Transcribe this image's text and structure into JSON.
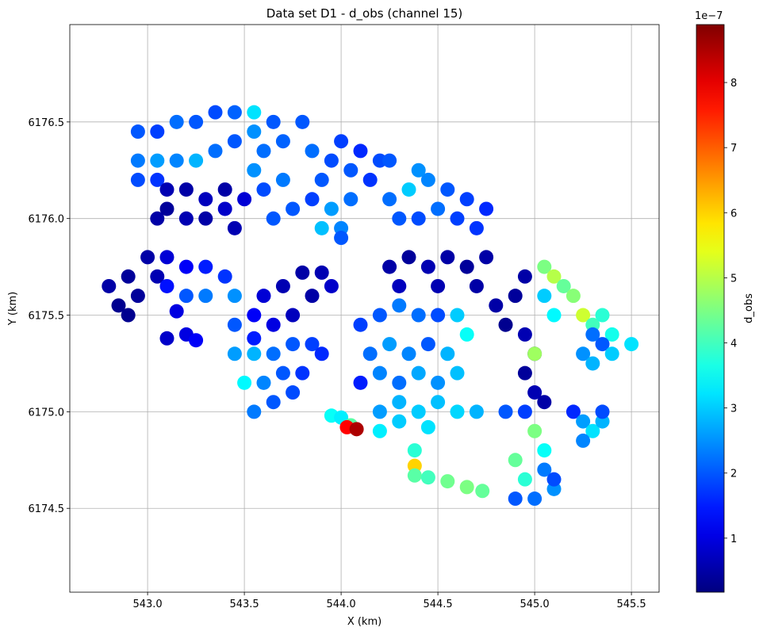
{
  "chart_data": {
    "type": "scatter",
    "title": "Data set D1 - d_obs (channel 15)",
    "x_label": "X (km)",
    "y_label": "Y (km)",
    "colorbar_label": "d_obs",
    "colorbar_offset": "1e−7",
    "colormap": "jet",
    "grid": true,
    "xlim": [
      542.598,
      545.643
    ],
    "ylim": [
      6174.066,
      6177.004
    ],
    "clim": [
      0.17,
      8.89
    ],
    "xticks": [
      {
        "value": 543,
        "label": "543.0"
      },
      543.5,
      {
        "value": 544,
        "label": "544.0"
      },
      544.5,
      {
        "value": 545,
        "label": "545.0"
      },
      545.5
    ],
    "yticks": [
      6174.5,
      {
        "value": 6175,
        "label": "6175.0"
      },
      6175.5,
      {
        "value": 6176,
        "label": "6176.0"
      },
      6176.5
    ],
    "cticks": [
      1,
      2,
      3,
      4,
      5,
      6,
      7,
      8
    ],
    "points": [
      [
        542.95,
        6176.45,
        2.0
      ],
      [
        543.05,
        6176.45,
        1.8
      ],
      [
        543.15,
        6176.5,
        2.2
      ],
      [
        543.25,
        6176.5,
        2.0
      ],
      [
        543.35,
        6176.55,
        1.9
      ],
      [
        543.45,
        6176.55,
        2.1
      ],
      [
        542.95,
        6176.3,
        2.3
      ],
      [
        543.05,
        6176.3,
        2.6
      ],
      [
        543.15,
        6176.3,
        2.4
      ],
      [
        543.25,
        6176.3,
        2.8
      ],
      [
        543.35,
        6176.35,
        2.2
      ],
      [
        543.45,
        6176.4,
        2.0
      ],
      [
        542.95,
        6176.2,
        1.9
      ],
      [
        543.05,
        6176.2,
        1.7
      ],
      [
        543.55,
        6176.45,
        2.5
      ],
      [
        543.55,
        6176.55,
        3.2
      ],
      [
        543.1,
        6176.15,
        0.6
      ],
      [
        543.2,
        6176.15,
        0.5
      ],
      [
        543.3,
        6176.1,
        0.7
      ],
      [
        543.4,
        6176.15,
        0.5
      ],
      [
        543.1,
        6176.05,
        0.4
      ],
      [
        543.2,
        6176.0,
        0.6
      ],
      [
        543.3,
        6176.0,
        0.5
      ],
      [
        543.4,
        6176.05,
        0.8
      ],
      [
        543.05,
        6176.0,
        0.5
      ],
      [
        543.45,
        6175.95,
        0.6
      ],
      [
        543.5,
        6176.1,
        0.9
      ],
      [
        543.55,
        6176.25,
        2.5
      ],
      [
        543.6,
        6176.35,
        2.2
      ],
      [
        543.65,
        6176.5,
        2.0
      ],
      [
        543.6,
        6176.15,
        1.9
      ],
      [
        543.65,
        6176.0,
        2.0
      ],
      [
        543.7,
        6176.2,
        2.3
      ],
      [
        543.7,
        6176.4,
        2.1
      ],
      [
        543.75,
        6176.05,
        2.0
      ],
      [
        543.8,
        6176.5,
        2.0
      ],
      [
        543.85,
        6176.35,
        2.2
      ],
      [
        543.9,
        6176.2,
        2.0
      ],
      [
        543.95,
        6176.05,
        2.6
      ],
      [
        544.0,
        6175.95,
        2.4
      ],
      [
        543.85,
        6176.1,
        1.8
      ],
      [
        543.9,
        6175.95,
        2.9
      ],
      [
        544.05,
        6176.1,
        2.2
      ],
      [
        543.95,
        6176.3,
        1.9
      ],
      [
        544.0,
        6175.9,
        2.0
      ],
      [
        544.0,
        6176.4,
        1.8
      ],
      [
        544.1,
        6176.35,
        1.6
      ],
      [
        544.2,
        6176.3,
        1.9
      ],
      [
        544.05,
        6176.25,
        2.0
      ],
      [
        544.15,
        6176.2,
        1.7
      ],
      [
        544.25,
        6176.3,
        2.0
      ],
      [
        544.25,
        6176.1,
        2.2
      ],
      [
        544.35,
        6176.15,
        3.0
      ],
      [
        544.45,
        6176.2,
        2.4
      ],
      [
        544.55,
        6176.15,
        2.0
      ],
      [
        544.65,
        6176.1,
        1.8
      ],
      [
        544.75,
        6176.05,
        1.6
      ],
      [
        544.3,
        6176.0,
        2.0
      ],
      [
        544.4,
        6176.0,
        1.9
      ],
      [
        544.5,
        6176.05,
        2.2
      ],
      [
        544.6,
        6176.0,
        1.8
      ],
      [
        544.7,
        6175.95,
        1.7
      ],
      [
        544.4,
        6176.25,
        2.5
      ],
      [
        542.8,
        6175.65,
        0.5
      ],
      [
        542.9,
        6175.7,
        0.4
      ],
      [
        543.0,
        6175.8,
        0.5
      ],
      [
        542.85,
        6175.55,
        0.3
      ],
      [
        542.95,
        6175.6,
        0.4
      ],
      [
        543.05,
        6175.7,
        0.6
      ],
      [
        542.9,
        6175.5,
        0.3
      ],
      [
        543.1,
        6175.8,
        0.9
      ],
      [
        543.2,
        6175.75,
        1.2
      ],
      [
        543.3,
        6175.75,
        1.5
      ],
      [
        543.4,
        6175.7,
        1.7
      ],
      [
        543.1,
        6175.65,
        1.4
      ],
      [
        543.2,
        6175.6,
        2.0
      ],
      [
        543.3,
        6175.6,
        2.3
      ],
      [
        543.45,
        6175.6,
        2.5
      ],
      [
        543.15,
        6175.52,
        1.0
      ],
      [
        543.1,
        6175.38,
        0.8
      ],
      [
        543.2,
        6175.4,
        1.0
      ],
      [
        543.25,
        6175.37,
        1.2
      ],
      [
        543.45,
        6175.45,
        2.0
      ],
      [
        543.55,
        6175.5,
        1.2
      ],
      [
        543.6,
        6175.6,
        0.9
      ],
      [
        543.7,
        6175.65,
        0.6
      ],
      [
        543.8,
        6175.72,
        0.5
      ],
      [
        543.9,
        6175.72,
        0.6
      ],
      [
        543.65,
        6175.45,
        1.0
      ],
      [
        543.75,
        6175.5,
        0.7
      ],
      [
        543.85,
        6175.6,
        0.5
      ],
      [
        543.95,
        6175.65,
        0.8
      ],
      [
        543.55,
        6175.38,
        1.5
      ],
      [
        544.25,
        6175.75,
        0.5
      ],
      [
        544.35,
        6175.8,
        0.4
      ],
      [
        544.45,
        6175.75,
        0.6
      ],
      [
        544.55,
        6175.8,
        0.5
      ],
      [
        544.65,
        6175.75,
        0.4
      ],
      [
        544.75,
        6175.8,
        0.5
      ],
      [
        544.3,
        6175.65,
        0.7
      ],
      [
        544.5,
        6175.65,
        0.6
      ],
      [
        544.7,
        6175.65,
        0.5
      ],
      [
        544.1,
        6175.45,
        1.8
      ],
      [
        544.2,
        6175.5,
        2.0
      ],
      [
        544.3,
        6175.55,
        2.3
      ],
      [
        544.4,
        6175.5,
        2.2
      ],
      [
        544.5,
        6175.5,
        1.9
      ],
      [
        544.6,
        6175.5,
        3.0
      ],
      [
        544.15,
        6175.3,
        2.2
      ],
      [
        544.25,
        6175.35,
        2.6
      ],
      [
        544.35,
        6175.3,
        2.4
      ],
      [
        544.45,
        6175.35,
        2.0
      ],
      [
        544.55,
        6175.3,
        2.8
      ],
      [
        544.65,
        6175.4,
        3.5
      ],
      [
        544.1,
        6175.15,
        1.5
      ],
      [
        544.2,
        6175.2,
        2.4
      ],
      [
        544.3,
        6175.15,
        2.2
      ],
      [
        544.4,
        6175.2,
        2.7
      ],
      [
        544.5,
        6175.15,
        2.5
      ],
      [
        544.6,
        6175.2,
        2.9
      ],
      [
        543.45,
        6175.3,
        2.6
      ],
      [
        543.55,
        6175.3,
        2.8
      ],
      [
        543.65,
        6175.3,
        2.2
      ],
      [
        543.75,
        6175.35,
        2.0
      ],
      [
        543.85,
        6175.35,
        1.8
      ],
      [
        543.5,
        6175.15,
        3.4
      ],
      [
        543.6,
        6175.15,
        2.4
      ],
      [
        543.7,
        6175.2,
        2.0
      ],
      [
        543.8,
        6175.2,
        1.7
      ],
      [
        543.9,
        6175.3,
        1.6
      ],
      [
        543.55,
        6175.0,
        2.3
      ],
      [
        543.65,
        6175.05,
        2.0
      ],
      [
        543.75,
        6175.1,
        1.9
      ],
      [
        544.2,
        6175.0,
        2.6
      ],
      [
        544.3,
        6175.05,
        2.8
      ],
      [
        544.4,
        6175.0,
        3.0
      ],
      [
        544.5,
        6175.05,
        2.9
      ],
      [
        544.6,
        6175.0,
        3.1
      ],
      [
        544.7,
        6175.0,
        2.8
      ],
      [
        544.2,
        6174.9,
        3.3
      ],
      [
        544.3,
        6174.95,
        3.0
      ],
      [
        544.45,
        6174.92,
        3.2
      ],
      [
        543.95,
        6174.98,
        3.5
      ],
      [
        544.0,
        6174.97,
        3.3
      ],
      [
        544.05,
        6174.93,
        4.2
      ],
      [
        544.03,
        6174.92,
        7.8
      ],
      [
        544.08,
        6174.91,
        8.5
      ],
      [
        544.38,
        6174.8,
        3.8
      ],
      [
        544.38,
        6174.72,
        6.0
      ],
      [
        544.38,
        6174.67,
        4.2
      ],
      [
        544.45,
        6174.66,
        4.0
      ],
      [
        544.55,
        6174.64,
        4.4
      ],
      [
        544.65,
        6174.61,
        4.5
      ],
      [
        544.73,
        6174.59,
        4.3
      ],
      [
        544.8,
        6175.55,
        0.5
      ],
      [
        544.9,
        6175.6,
        0.4
      ],
      [
        544.95,
        6175.7,
        0.5
      ],
      [
        544.85,
        6175.45,
        0.3
      ],
      [
        544.95,
        6175.4,
        0.6
      ],
      [
        545.0,
        6175.3,
        0.5
      ],
      [
        544.95,
        6175.2,
        0.4
      ],
      [
        545.0,
        6175.1,
        0.6
      ],
      [
        545.05,
        6175.05,
        0.5
      ],
      [
        545.0,
        6175.3,
        4.8
      ],
      [
        545.05,
        6175.75,
        4.5
      ],
      [
        545.1,
        6175.7,
        5.0
      ],
      [
        545.15,
        6175.65,
        4.3
      ],
      [
        545.2,
        6175.6,
        4.6
      ],
      [
        545.25,
        6175.5,
        5.2
      ],
      [
        545.3,
        6175.45,
        4.0
      ],
      [
        545.4,
        6175.4,
        3.6
      ],
      [
        545.5,
        6175.35,
        3.2
      ],
      [
        545.05,
        6175.6,
        3.0
      ],
      [
        545.1,
        6175.5,
        3.4
      ],
      [
        545.35,
        6175.5,
        3.8
      ],
      [
        545.25,
        6175.3,
        2.5
      ],
      [
        545.3,
        6175.25,
        2.8
      ],
      [
        545.35,
        6175.35,
        2.0
      ],
      [
        545.3,
        6175.4,
        2.2
      ],
      [
        545.4,
        6175.3,
        3.0
      ],
      [
        544.85,
        6175.0,
        2.0
      ],
      [
        544.95,
        6175.0,
        1.8
      ],
      [
        545.0,
        6174.9,
        4.5
      ],
      [
        544.9,
        6174.75,
        4.3
      ],
      [
        544.95,
        6174.65,
        3.8
      ],
      [
        545.05,
        6174.7,
        2.3
      ],
      [
        545.1,
        6174.6,
        2.5
      ],
      [
        545.0,
        6174.55,
        2.2
      ],
      [
        544.9,
        6174.55,
        2.0
      ],
      [
        545.05,
        6174.8,
        3.5
      ],
      [
        545.1,
        6174.65,
        1.9
      ],
      [
        545.2,
        6175.0,
        1.6
      ],
      [
        545.25,
        6174.95,
        2.6
      ],
      [
        545.3,
        6174.9,
        3.2
      ],
      [
        545.35,
        6174.95,
        2.8
      ],
      [
        545.25,
        6174.85,
        2.4
      ],
      [
        545.35,
        6175.0,
        1.9
      ]
    ]
  }
}
